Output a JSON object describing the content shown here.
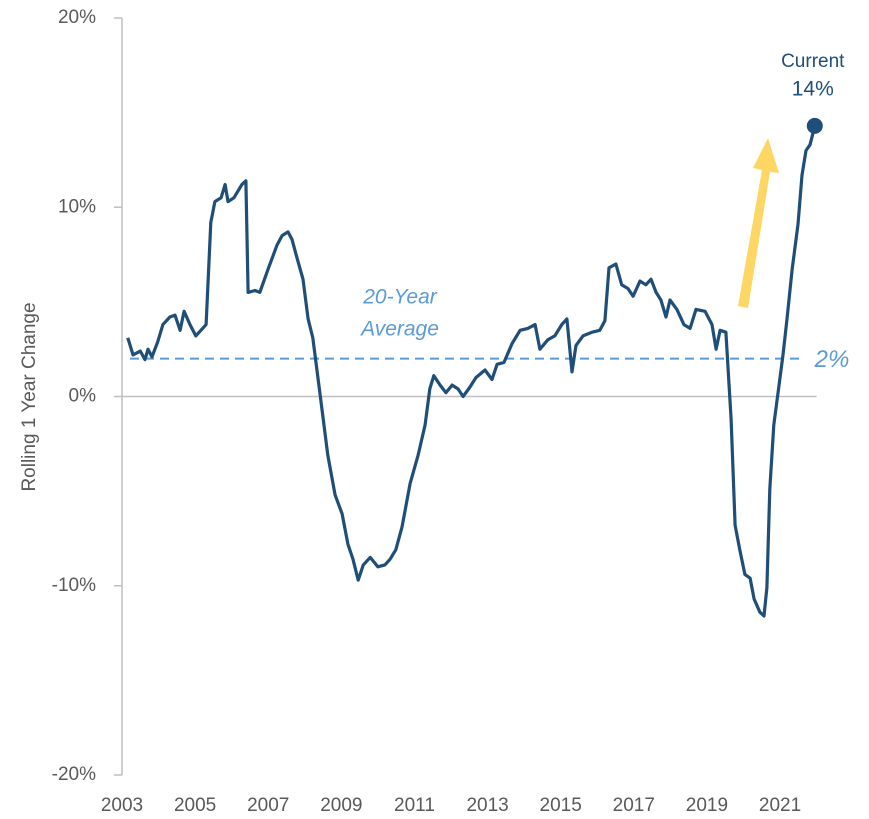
{
  "chart_data": {
    "type": "line",
    "y_label": "Rolling 1 Year Change",
    "xlim": [
      2003,
      2022
    ],
    "xticks": [
      2003,
      2005,
      2007,
      2009,
      2011,
      2013,
      2015,
      2017,
      2019,
      2021
    ],
    "ylim": [
      -20,
      20
    ],
    "yticks": [
      {
        "value": -20,
        "label": "-20%"
      },
      {
        "value": -10,
        "label": "-10%"
      },
      {
        "value": 0,
        "label": "0%"
      },
      {
        "value": 10,
        "label": "10%"
      },
      {
        "value": 20,
        "label": "20%"
      }
    ],
    "average": {
      "value": 2,
      "value_label": "2%",
      "label_line1": "20-Year",
      "label_line2": "Average",
      "color": "#5b9bd5"
    },
    "current": {
      "label": "Current",
      "value_label": "14%"
    },
    "series": [
      {
        "name": "Rolling 1 Year Change",
        "color": "#1f4e79",
        "x": [
          2003.16,
          2003.3,
          2003.5,
          2003.63,
          2003.71,
          2003.82,
          2003.98,
          2004.12,
          2004.31,
          2004.45,
          2004.59,
          2004.7,
          2004.86,
          2005.02,
          2005.3,
          2005.43,
          2005.54,
          2005.71,
          2005.82,
          2005.9,
          2006.06,
          2006.28,
          2006.39,
          2006.45,
          2006.64,
          2006.77,
          2006.99,
          2007.24,
          2007.38,
          2007.54,
          2007.65,
          2007.79,
          2007.95,
          2008.09,
          2008.22,
          2008.42,
          2008.63,
          2008.83,
          2009.02,
          2009.18,
          2009.32,
          2009.46,
          2009.6,
          2009.79,
          2010.0,
          2010.19,
          2010.33,
          2010.49,
          2010.66,
          2010.88,
          2011.1,
          2011.29,
          2011.42,
          2011.53,
          2011.7,
          2011.86,
          2012.03,
          2012.19,
          2012.33,
          2012.52,
          2012.68,
          2012.93,
          2013.12,
          2013.26,
          2013.45,
          2013.67,
          2013.89,
          2014.1,
          2014.3,
          2014.43,
          2014.65,
          2014.84,
          2015.03,
          2015.17,
          2015.31,
          2015.42,
          2015.61,
          2015.86,
          2016.07,
          2016.21,
          2016.32,
          2016.51,
          2016.67,
          2016.84,
          2016.98,
          2017.17,
          2017.33,
          2017.47,
          2017.61,
          2017.74,
          2017.88,
          2017.99,
          2018.18,
          2018.37,
          2018.54,
          2018.7,
          2018.95,
          2019.14,
          2019.25,
          2019.36,
          2019.52,
          2019.66,
          2019.77,
          2019.9,
          2020.04,
          2020.18,
          2020.29,
          2020.45,
          2020.56,
          2020.64,
          2020.72,
          2020.83,
          2020.94,
          2021.08,
          2021.19,
          2021.33,
          2021.49,
          2021.6,
          2021.71,
          2021.82,
          2021.95
        ],
        "values": [
          3.1,
          2.2,
          2.4,
          1.95,
          2.5,
          2.1,
          2.9,
          3.8,
          4.2,
          4.3,
          3.5,
          4.5,
          3.8,
          3.2,
          3.8,
          9.2,
          10.3,
          10.5,
          11.2,
          10.3,
          10.5,
          11.2,
          11.4,
          5.5,
          5.6,
          5.5,
          6.7,
          8.0,
          8.5,
          8.7,
          8.3,
          7.3,
          6.2,
          4.1,
          3.1,
          0.1,
          -3.1,
          -5.2,
          -6.2,
          -7.8,
          -8.6,
          -9.7,
          -8.9,
          -8.5,
          -9.0,
          -8.9,
          -8.6,
          -8.1,
          -6.9,
          -4.6,
          -3.1,
          -1.5,
          0.4,
          1.1,
          0.6,
          0.2,
          0.6,
          0.4,
          0.0,
          0.5,
          1.0,
          1.4,
          0.9,
          1.7,
          1.8,
          2.8,
          3.5,
          3.6,
          3.8,
          2.5,
          3.0,
          3.2,
          3.8,
          4.1,
          1.3,
          2.7,
          3.2,
          3.4,
          3.5,
          4.0,
          6.8,
          7.0,
          5.9,
          5.7,
          5.3,
          6.1,
          5.9,
          6.2,
          5.5,
          5.1,
          4.2,
          5.1,
          4.6,
          3.8,
          3.6,
          4.6,
          4.5,
          3.8,
          2.5,
          3.5,
          3.4,
          -1.2,
          -6.8,
          -8.1,
          -9.4,
          -9.6,
          -10.7,
          -11.4,
          -11.6,
          -10.1,
          -4.9,
          -1.5,
          0.1,
          2.2,
          4.1,
          6.7,
          9.1,
          11.7,
          13.0,
          13.3,
          14.3
        ]
      }
    ]
  }
}
